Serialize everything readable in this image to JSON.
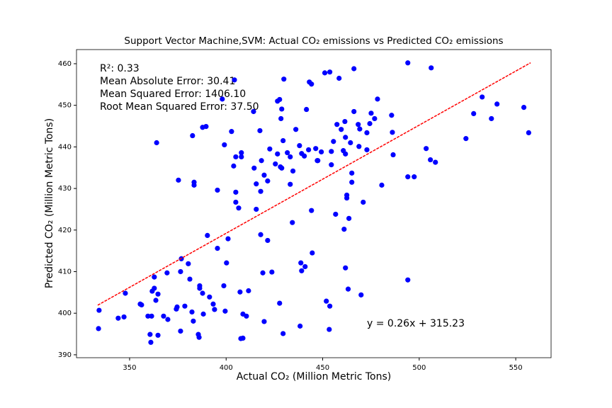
{
  "chart_data": {
    "type": "scatter",
    "title": "Support Vector Machine,SVM: Actual CO₂ emissions vs Predicted CO₂ emissions",
    "x_label": "Actual CO₂ (Million Metric Tons)",
    "y_label": "Predicted CO₂ (Million Metric Tons)",
    "annotations": [
      "R²: 0.33",
      "Mean Absolute Error: 30.41",
      "Mean Squared Error: 1406.10",
      "Root Mean Squared Error: 37.50"
    ],
    "equation": "y = 0.26x + 315.23",
    "xlim": [
      322.5,
      568.3
    ],
    "ylim": [
      389.3,
      463.4
    ],
    "xticks": [
      350,
      400,
      450,
      500,
      550
    ],
    "yticks": [
      390,
      400,
      410,
      420,
      430,
      440,
      450,
      460
    ],
    "grid": false,
    "points": {
      "color": "#0000ff",
      "x": [
        333.9,
        334.2,
        347.8,
        347.1,
        344.1,
        355.5,
        356.2,
        360.6,
        361.0,
        359.5,
        361.4,
        361.7,
        362.8,
        362.8,
        363.6,
        364.7,
        364.7,
        364.0,
        367.6,
        369.4,
        369.8,
        374.2,
        374.6,
        375.3,
        376.4,
        376.8,
        376.4,
        378.6,
        380.4,
        381.2,
        382.3,
        383.0,
        382.6,
        383.4,
        383.4,
        385.6,
        386.0,
        386.3,
        386.3,
        387.8,
        388.2,
        387.8,
        389.6,
        390.3,
        391.4,
        393.3,
        394.0,
        395.5,
        395.5,
        398.8,
        398.0,
        399.1,
        399.5,
        400.2,
        401.0,
        402.8,
        403.9,
        404.3,
        405.0,
        405.0,
        405.0,
        406.5,
        407.2,
        407.6,
        408.7,
        407.9,
        407.9,
        408.7,
        410.5,
        411.6,
        414.5,
        415.6,
        415.6,
        414.2,
        417.5,
        417.9,
        417.9,
        418.3,
        419.0,
        419.7,
        419.7,
        421.5,
        421.5,
        422.6,
        423.7,
        425.5,
        426.6,
        426.6,
        427.7,
        427.7,
        428.1,
        428.4,
        428.8,
        428.8,
        429.5,
        429.9,
        429.5,
        431.7,
        433.2,
        433.2,
        434.3,
        434.6,
        436.1,
        438.0,
        439.1,
        440.5,
        438.3,
        438.7,
        439.1,
        440.9,
        441.6,
        442.7,
        443.1,
        444.2,
        444.2,
        444.6,
        446.4,
        447.2,
        447.5,
        449.3,
        451.1,
        453.7,
        451.9,
        453.7,
        453.4,
        454.5,
        454.5,
        455.6,
        456.7,
        457.4,
        458.5,
        459.6,
        460.7,
        461.1,
        461.8,
        461.8,
        461.5,
        461.8,
        462.5,
        462.5,
        463.2,
        463.6,
        464.4,
        465.1,
        465.1,
        466.2,
        466.2,
        468.4,
        468.8,
        469.2,
        469.9,
        471.0,
        472.9,
        472.9,
        474.4,
        475.1,
        476.9,
        478.4,
        480.6,
        485.7,
        486.1,
        486.5,
        494.1,
        494.1,
        494.1,
        497.4,
        503.6,
        505.8,
        506.2,
        508.4,
        524.2,
        528.2,
        532.6,
        537.4,
        540.3,
        554.2,
        556.7
      ],
      "y": [
        396.3,
        400.7,
        404.8,
        399.1,
        398.8,
        402.2,
        402.0,
        394.9,
        393.0,
        399.3,
        399.3,
        405.3,
        408.7,
        406.0,
        403.1,
        404.6,
        394.7,
        441.0,
        399.3,
        409.7,
        398.5,
        401.0,
        401.5,
        432.0,
        395.7,
        413.1,
        410.0,
        401.7,
        411.9,
        408.2,
        400.3,
        398.1,
        442.7,
        431.5,
        430.8,
        394.9,
        394.2,
        406.6,
        406.0,
        404.8,
        399.8,
        444.7,
        444.9,
        418.7,
        403.9,
        402.2,
        400.9,
        429.6,
        415.6,
        406.6,
        451.5,
        440.5,
        400.5,
        412.1,
        417.9,
        443.7,
        435.4,
        456.1,
        437.6,
        429.1,
        426.7,
        425.3,
        405.1,
        393.9,
        394.0,
        438.6,
        437.6,
        399.8,
        399.3,
        405.4,
        434.9,
        431.1,
        425.0,
        448.5,
        443.9,
        429.3,
        418.9,
        436.7,
        409.7,
        433.2,
        398.0,
        431.8,
        417.5,
        439.5,
        409.9,
        435.9,
        438.3,
        451.0,
        451.4,
        402.4,
        435.2,
        446.8,
        449.1,
        434.9,
        441.5,
        456.3,
        395.1,
        438.6,
        437.6,
        431.0,
        421.8,
        434.2,
        444.2,
        440.3,
        438.4,
        437.8,
        396.9,
        412.1,
        410.2,
        411.2,
        449.0,
        439.3,
        455.6,
        455.1,
        424.7,
        414.5,
        439.6,
        436.7,
        436.7,
        438.8,
        457.8,
        458.0,
        402.9,
        401.7,
        396.1,
        435.7,
        438.9,
        441.3,
        423.8,
        445.4,
        456.5,
        444.2,
        439.1,
        420.2,
        438.3,
        410.9,
        446.1,
        442.3,
        428.4,
        427.7,
        405.8,
        422.8,
        441.0,
        433.7,
        431.5,
        458.8,
        448.5,
        445.4,
        440.1,
        444.3,
        404.4,
        426.7,
        443.4,
        439.3,
        445.6,
        448.1,
        446.8,
        451.5,
        430.8,
        447.6,
        443.5,
        438.1,
        460.2,
        432.8,
        408.0,
        432.8,
        439.6,
        436.9,
        459.0,
        436.3,
        442.0,
        448.0,
        452.0,
        446.8,
        450.3,
        449.5,
        443.4
      ]
    },
    "fit_line": {
      "color": "#ff0000",
      "x": [
        333.5,
        557.7
      ],
      "y": [
        401.94,
        460.23
      ]
    }
  }
}
